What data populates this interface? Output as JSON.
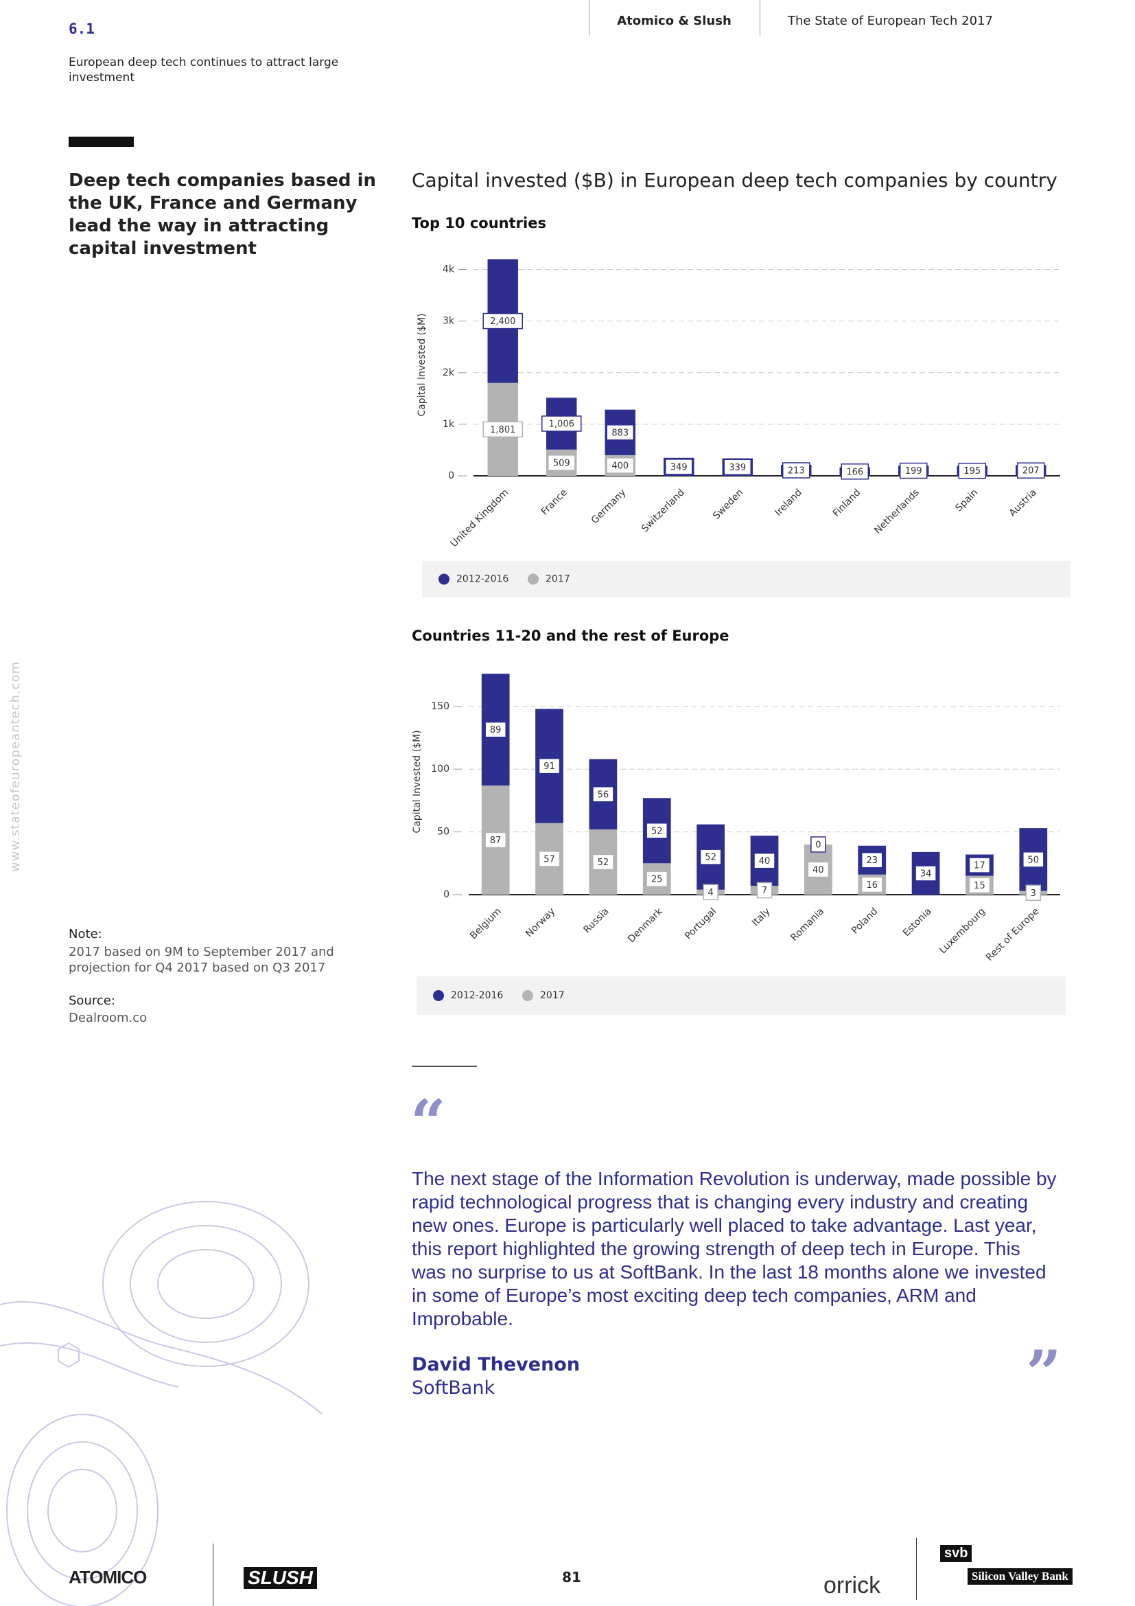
{
  "header": {
    "section": "6.1",
    "subtitle": "European deep tech continues to attract large investment",
    "brand": "Atomico & Slush",
    "report": "The State of European Tech 2017"
  },
  "sidebar": {
    "headline": "Deep tech companies based in the UK, France and Germany lead the way in attracting capital investment",
    "note_title": "Note:",
    "note": "2017 based on 9M to September 2017 and projection for Q4 2017 based on Q3 2017",
    "source_title": "Source:",
    "source": "Dealroom.co",
    "website": "www.stateofeuropeantech.com"
  },
  "chart_heading": "Capital invested ($B) in European deep tech companies by country",
  "chart_data": [
    {
      "type": "bar",
      "stacked": true,
      "title": "Top 10 countries",
      "ylabel": "Capital Invested ($M)",
      "categories": [
        "United Kingdom",
        "France",
        "Germany",
        "Switzerland",
        "Sweden",
        "Ireland",
        "Finland",
        "Netherlands",
        "Spain",
        "Austria"
      ],
      "series": [
        {
          "name": "2012-2016",
          "color": "#2e2e8f",
          "values": [
            2400,
            1006,
            883,
            349,
            339,
            213,
            166,
            199,
            195,
            207
          ],
          "value_labels": [
            "2,400",
            "1,006",
            "883",
            "349",
            "339",
            "213",
            "166",
            "199",
            "195",
            "207"
          ]
        },
        {
          "name": "2017",
          "color": "#b3b3b3",
          "values": [
            1801,
            509,
            400,
            null,
            null,
            null,
            null,
            null,
            null,
            null
          ],
          "value_labels": [
            "1,801",
            "509",
            "400",
            null,
            null,
            null,
            null,
            null,
            null,
            null
          ]
        }
      ],
      "ylim": [
        0,
        4300
      ],
      "yticks": [
        0,
        {
          "value": 1000,
          "label": "1k"
        },
        {
          "value": 2000,
          "label": "2k"
        },
        {
          "value": 3000,
          "label": "3k"
        },
        {
          "value": 4000,
          "label": "4k"
        }
      ],
      "grid": true
    },
    {
      "type": "bar",
      "stacked": true,
      "title": "Countries 11-20 and the rest of Europe",
      "ylabel": "Capital Invested ($M)",
      "categories": [
        "Belgium",
        "Norway",
        "Russia",
        "Denmark",
        "Portugal",
        "Italy",
        "Romania",
        "Poland",
        "Estonia",
        "Luxembourg",
        "Rest of Europe"
      ],
      "series": [
        {
          "name": "2012-2016",
          "color": "#2e2e8f",
          "values": [
            89,
            91,
            56,
            52,
            52,
            40,
            0,
            23,
            34,
            17,
            50
          ]
        },
        {
          "name": "2017",
          "color": "#b3b3b3",
          "values": [
            87,
            57,
            52,
            25,
            4,
            7,
            40,
            16,
            null,
            15,
            3
          ]
        }
      ],
      "ylim": [
        0,
        180
      ],
      "yticks": [
        0,
        50,
        100,
        150
      ],
      "grid": true
    }
  ],
  "quote": {
    "text": "The next stage of the Information Revolution is underway, made possible by rapid technological progress that is changing every industry and creating new ones. Europe is particularly well placed to take advantage. Last year, this report highlighted the growing strength of deep tech in Europe. This was no surprise to us at SoftBank. In the last 18 months alone we invested in some of Europe’s most exciting deep tech companies, ARM and Improbable.",
    "author": "David Thevenon",
    "company": "SoftBank"
  },
  "footer": {
    "page": "81",
    "logos": [
      "ATOMICO",
      "SLUSH",
      "orrick",
      "svb",
      "Silicon Valley Bank"
    ]
  }
}
